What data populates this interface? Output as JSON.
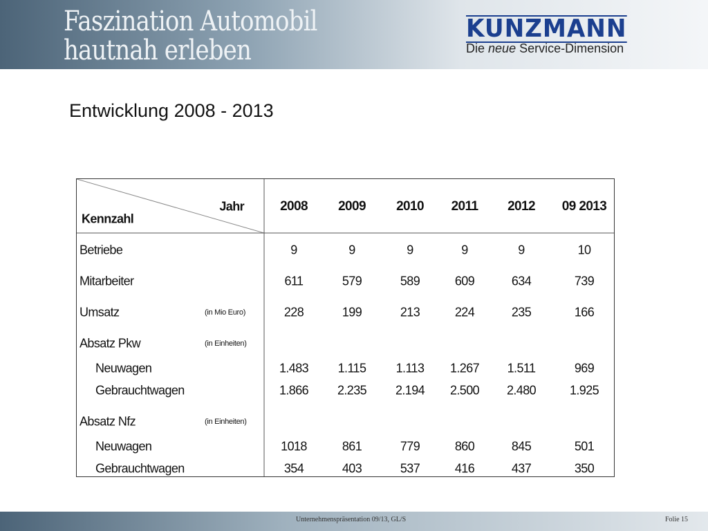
{
  "header": {
    "title_lines": [
      "Faszination Automobil",
      "hautnah erleben"
    ],
    "logo": "KUNZMANN",
    "tagline": [
      "Die",
      "neue",
      "Service-Dimension"
    ]
  },
  "slide_title": "Entwicklung 2008 - 2013",
  "table": {
    "corner_top": "Jahr",
    "corner_bottom": "Kennzahl",
    "columns": [
      "2008",
      "2009",
      "2010",
      "2011",
      "2012",
      "09 2013"
    ],
    "rows": [
      {
        "label": "Betriebe",
        "values": [
          "9",
          "9",
          "9",
          "9",
          "9",
          "10"
        ]
      },
      {
        "label": "Mitarbeiter",
        "values": [
          "611",
          "579",
          "589",
          "609",
          "634",
          "739"
        ]
      },
      {
        "label": "Umsatz",
        "unit": "(in Mio Euro)",
        "values": [
          "228",
          "199",
          "213",
          "224",
          "235",
          "166"
        ]
      },
      {
        "label": "Absatz Pkw",
        "unit": "(in Einheiten)"
      },
      {
        "label": "Neuwagen",
        "indent": true,
        "values": [
          "1.483",
          "1.115",
          "1.113",
          "1.267",
          "1.511",
          "969"
        ]
      },
      {
        "label": "Gebrauchtwagen",
        "indent": true,
        "values": [
          "1.866",
          "2.235",
          "2.194",
          "2.500",
          "2.480",
          "1.925"
        ]
      },
      {
        "label": "Absatz Nfz",
        "unit": "(in Einheiten)"
      },
      {
        "label": "Neuwagen",
        "indent": true,
        "values": [
          "1018",
          "861",
          "779",
          "860",
          "845",
          "501"
        ]
      },
      {
        "label": "Gebrauchtwagen",
        "indent": true,
        "values": [
          "354",
          "403",
          "537",
          "416",
          "437",
          "350"
        ]
      }
    ]
  },
  "footer": {
    "center": "Unternehmenspräsentation 09/13, GL/S",
    "right": "Folie 15"
  }
}
